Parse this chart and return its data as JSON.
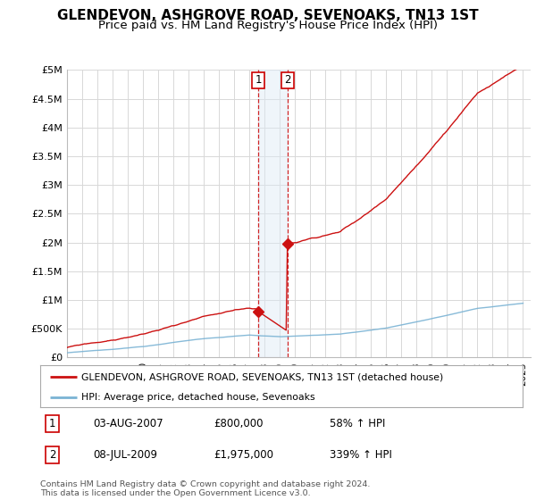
{
  "title": "GLENDEVON, ASHGROVE ROAD, SEVENOAKS, TN13 1ST",
  "subtitle": "Price paid vs. HM Land Registry's House Price Index (HPI)",
  "background_color": "#ffffff",
  "plot_bg_color": "#ffffff",
  "grid_color": "#d8d8d8",
  "ylim": [
    0,
    5000000
  ],
  "yticks": [
    0,
    500000,
    1000000,
    1500000,
    2000000,
    2500000,
    3000000,
    3500000,
    4000000,
    4500000,
    5000000
  ],
  "ytick_labels": [
    "£0",
    "£500K",
    "£1M",
    "£1.5M",
    "£2M",
    "£2.5M",
    "£3M",
    "£3.5M",
    "£4M",
    "£4.5M",
    "£5M"
  ],
  "xlim_start": 1995,
  "xlim_end": 2025.5,
  "sale1_year": 2007.58,
  "sale1_price": 800000,
  "sale2_year": 2009.52,
  "sale2_price": 1975000,
  "hpi_color": "#7ab3d4",
  "property_color": "#cc1111",
  "annotation_box_color": "#cc0000",
  "shade_color": "#dce9f5",
  "legend_label_property": "GLENDEVON, ASHGROVE ROAD, SEVENOAKS, TN13 1ST (detached house)",
  "legend_label_hpi": "HPI: Average price, detached house, Sevenoaks",
  "table_data": [
    [
      "1",
      "03-AUG-2007",
      "£800,000",
      "58% ↑ HPI"
    ],
    [
      "2",
      "08-JUL-2009",
      "£1,975,000",
      "339% ↑ HPI"
    ]
  ],
  "footer_text": "Contains HM Land Registry data © Crown copyright and database right 2024.\nThis data is licensed under the Open Government Licence v3.0.",
  "title_fontsize": 11,
  "subtitle_fontsize": 9.5
}
